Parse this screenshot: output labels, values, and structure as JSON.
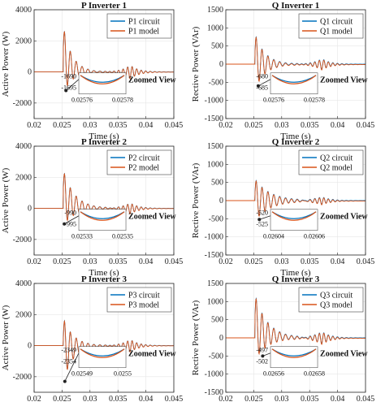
{
  "colors": {
    "circuit": "#0072BD",
    "model": "#D95319",
    "axis": "#262626",
    "grid": "#e6e6e6",
    "zoom_box": "#555555"
  },
  "chart_data": [
    {
      "type": "line",
      "panel": "p1",
      "title": "P Inverter 1",
      "xlabel": "Time (s)",
      "ylabel": "Active Power (W)",
      "xlim": [
        0.02,
        0.045
      ],
      "ylim": [
        -3000,
        4000
      ],
      "xticks": [
        "0.02",
        "0.025",
        "0.03",
        "0.035",
        "0.04",
        "0.045"
      ],
      "yticks": [
        "-2000",
        "0",
        "2000",
        "4000"
      ],
      "grid": true,
      "legend_position": "top-right",
      "series": [
        {
          "name": "P1 circuit"
        },
        {
          "name": "P1 model"
        }
      ],
      "transient": {
        "t_start": 0.0252,
        "peak": 3000,
        "dip": -1400,
        "decay_time": 0.0035,
        "steady": 0
      },
      "zoom": {
        "label": "Zoomed View",
        "point_t": 0.0257,
        "point_v": -1200,
        "x_labels": [
          "0.02576",
          "0.02578"
        ],
        "y_labels": [
          "-1690",
          "-1695"
        ],
        "circuit_min": -1690,
        "model_min": -1693
      }
    },
    {
      "type": "line",
      "panel": "q1",
      "title": "Q Inverter 1",
      "xlabel": "Time (s)",
      "ylabel": "Rective Power (VAr)",
      "xlim": [
        0.02,
        0.045
      ],
      "ylim": [
        -1500,
        1500
      ],
      "xticks": [
        "0.02",
        "0.025",
        "0.03",
        "0.035",
        "0.04",
        "0.045"
      ],
      "yticks": [
        "-1500",
        "-1000",
        "-500",
        "0",
        "500",
        "1000",
        "1500"
      ],
      "grid": true,
      "legend_position": "top-right",
      "series": [
        {
          "name": "Q1 circuit"
        },
        {
          "name": "Q1 model"
        }
      ],
      "transient": {
        "t_start": 0.0252,
        "peak": 850,
        "dip": -700,
        "decay_time": 0.004,
        "steady": 0
      },
      "zoom": {
        "label": "Zoomed View",
        "point_t": 0.0258,
        "point_v": -600,
        "x_labels": [
          "0.02576",
          "0.02578"
        ],
        "y_labels": [
          "-680",
          "-685"
        ],
        "circuit_min": -680,
        "model_min": -684
      }
    },
    {
      "type": "line",
      "panel": "p2",
      "title": "P Inverter 2",
      "xlabel": "Time (s)",
      "ylabel": "Active Power (W)",
      "xlim": [
        0.02,
        0.045
      ],
      "ylim": [
        -3000,
        4000
      ],
      "xticks": [
        "0.02",
        "0.025",
        "0.03",
        "0.035",
        "0.04",
        "0.045"
      ],
      "yticks": [
        "-2000",
        "0",
        "2000",
        "4000"
      ],
      "grid": true,
      "legend_position": "top-right",
      "series": [
        {
          "name": "P2 circuit"
        },
        {
          "name": "P2 model"
        }
      ],
      "transient": {
        "t_start": 0.0252,
        "peak": 2500,
        "dip": -1100,
        "decay_time": 0.0045,
        "steady": 0
      },
      "zoom": {
        "label": "Zoomed View",
        "point_t": 0.0254,
        "point_v": -1000,
        "x_labels": [
          "0.02533",
          "0.02535"
        ],
        "y_labels": [
          "-990",
          "-995"
        ],
        "circuit_min": -990,
        "model_min": -994
      }
    },
    {
      "type": "line",
      "panel": "q2",
      "title": "Q Inverter 2",
      "xlabel": "Time (s)",
      "ylabel": "Rective Power (VAr)",
      "xlim": [
        0.02,
        0.045
      ],
      "ylim": [
        -1500,
        1500
      ],
      "xticks": [
        "0.02",
        "0.025",
        "0.03",
        "0.035",
        "0.04",
        "0.045"
      ],
      "yticks": [
        "-1500",
        "-1000",
        "-500",
        "0",
        "500",
        "1000",
        "1500"
      ],
      "grid": true,
      "legend_position": "top-right",
      "series": [
        {
          "name": "Q2 circuit"
        },
        {
          "name": "Q2 model"
        }
      ],
      "transient": {
        "t_start": 0.0252,
        "peak": 600,
        "dip": -550,
        "decay_time": 0.006,
        "steady": 0
      },
      "zoom": {
        "label": "Zoomed View",
        "point_t": 0.026,
        "point_v": -520,
        "x_labels": [
          "0.02604",
          "0.02606"
        ],
        "y_labels": [
          "-520",
          "-525"
        ],
        "circuit_min": -520,
        "model_min": -524
      }
    },
    {
      "type": "line",
      "panel": "p3",
      "title": "P Inverter 3",
      "xlabel": "Time (s)",
      "ylabel": "Active Power (W)",
      "xlim": [
        0.02,
        0.045
      ],
      "ylim": [
        -3000,
        4000
      ],
      "xticks": [
        "0.02",
        "0.025",
        "0.03",
        "0.035",
        "0.04",
        "0.045"
      ],
      "yticks": [
        "-2000",
        "0",
        "2000",
        "4000"
      ],
      "grid": true,
      "legend_position": "top-right",
      "series": [
        {
          "name": "P3 circuit"
        },
        {
          "name": "P3 model"
        }
      ],
      "transient": {
        "t_start": 0.0252,
        "peak": 1800,
        "dip": -2300,
        "decay_time": 0.004,
        "steady": 0
      },
      "zoom": {
        "label": "Zoomed View",
        "point_t": 0.0255,
        "point_v": -2300,
        "x_labels": [
          "0.02549",
          "0.0255"
        ],
        "y_labels": [
          "-2349",
          "-2354"
        ],
        "circuit_min": -2349,
        "model_min": -2353
      }
    },
    {
      "type": "line",
      "panel": "q3",
      "title": "Q Inverter 3",
      "xlabel": "Time (s)",
      "ylabel": "Rective Power (VAr)",
      "xlim": [
        0.02,
        0.045
      ],
      "ylim": [
        -1500,
        1500
      ],
      "xticks": [
        "0.02",
        "0.025",
        "0.03",
        "0.035",
        "0.04",
        "0.045"
      ],
      "yticks": [
        "-1500",
        "-1000",
        "-500",
        "0",
        "500",
        "1000",
        "1500"
      ],
      "grid": true,
      "legend_position": "top-right",
      "series": [
        {
          "name": "Q3 circuit"
        },
        {
          "name": "Q3 model"
        }
      ],
      "transient": {
        "t_start": 0.0252,
        "peak": 1200,
        "dip": -600,
        "decay_time": 0.005,
        "steady": 0
      },
      "zoom": {
        "label": "Zoomed View",
        "point_t": 0.0266,
        "point_v": -500,
        "x_labels": [
          "0.02656",
          "0.02658"
        ],
        "y_labels": [
          "-497",
          "-502"
        ],
        "circuit_min": -497,
        "model_min": -501
      }
    }
  ]
}
